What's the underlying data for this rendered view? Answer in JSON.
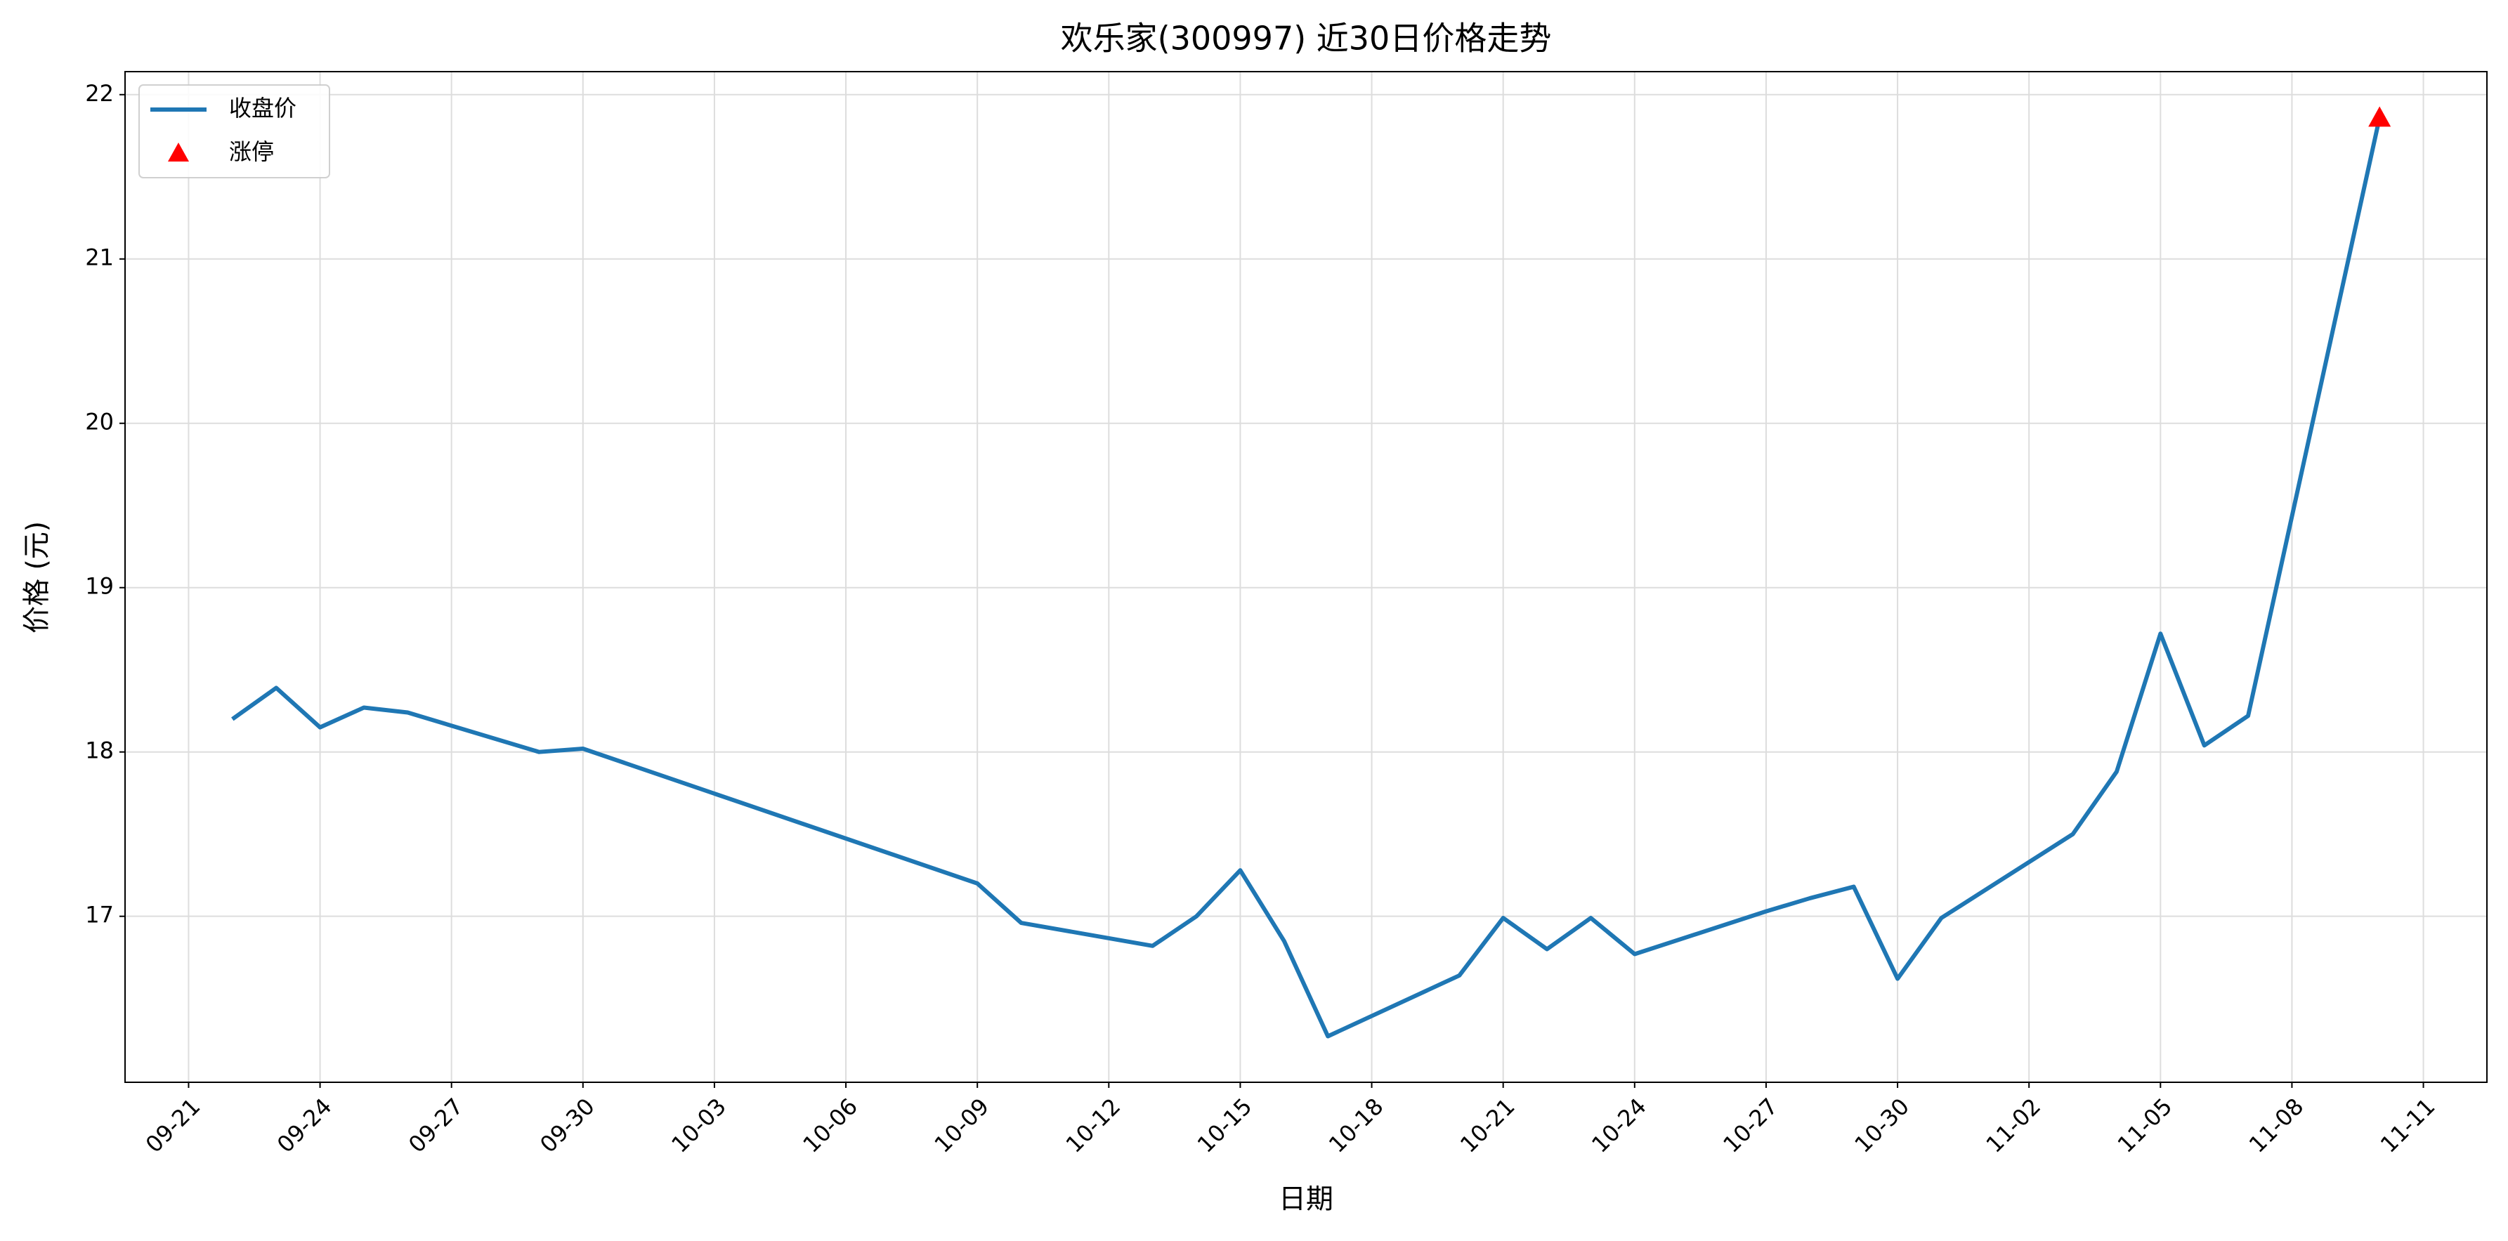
{
  "chart_data": {
    "type": "line",
    "title": "欢乐家(300997) 近30日价格走势",
    "xlabel": "日期",
    "ylabel": "价格 (元)",
    "x": [
      "09-22",
      "09-23",
      "09-24",
      "09-25",
      "09-26",
      "09-29",
      "09-30",
      "10-09",
      "10-10",
      "10-13",
      "10-14",
      "10-15",
      "10-16",
      "10-17",
      "10-20",
      "10-21",
      "10-22",
      "10-23",
      "10-24",
      "10-27",
      "10-28",
      "10-29",
      "10-30",
      "10-31",
      "11-03",
      "11-04",
      "11-05",
      "11-06",
      "11-07",
      "11-10"
    ],
    "series": [
      {
        "name": "收盘价",
        "color": "#1f77b4",
        "values": [
          18.2,
          18.39,
          18.15,
          18.27,
          18.24,
          18.0,
          18.02,
          17.2,
          16.96,
          16.82,
          17.0,
          17.28,
          16.85,
          16.27,
          16.64,
          16.99,
          16.8,
          16.99,
          16.77,
          17.03,
          17.11,
          17.18,
          16.62,
          16.99,
          17.5,
          17.88,
          18.72,
          18.04,
          18.22,
          21.86
        ]
      },
      {
        "name": "涨停",
        "type": "scatter",
        "marker": "triangle",
        "color": "#ff0000",
        "x": [
          "11-10"
        ],
        "values": [
          21.86
        ]
      }
    ],
    "xticks": [
      "09-21",
      "09-24",
      "09-27",
      "09-30",
      "10-03",
      "10-06",
      "10-09",
      "10-12",
      "10-15",
      "10-18",
      "10-21",
      "10-24",
      "10-27",
      "10-30",
      "11-02",
      "11-05",
      "11-08",
      "11-11"
    ],
    "ylim": [
      15.99,
      22.14
    ],
    "yticks": [
      17,
      18,
      19,
      20,
      21,
      22
    ],
    "grid": true,
    "legend": "upper left"
  }
}
